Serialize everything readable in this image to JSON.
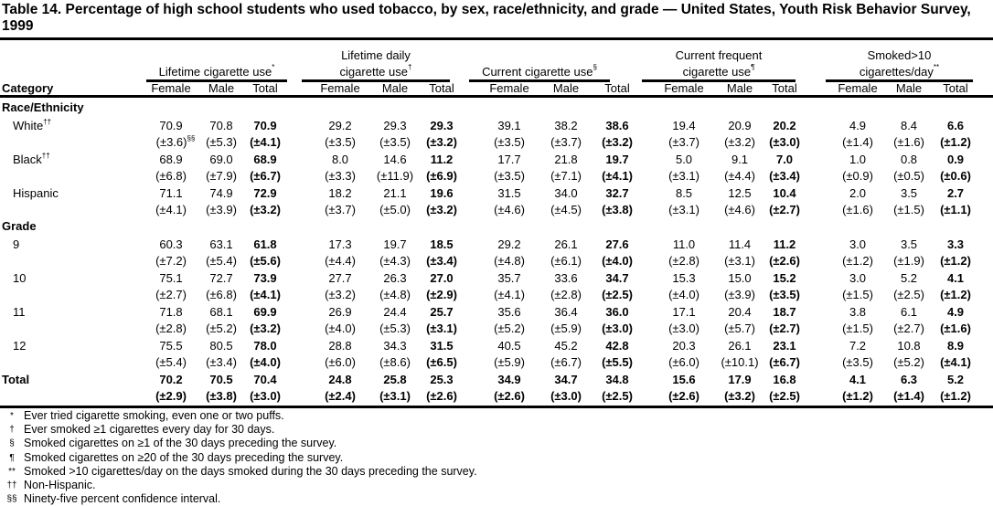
{
  "title": "Table 14. Percentage of high school students who used tobacco, by sex, race/ethnicity, and grade — United States, Youth Risk Behavior Survey, 1999",
  "category_header": "Category",
  "subheaders": [
    "Female",
    "Male",
    "Total"
  ],
  "groups": [
    {
      "label_lines": [
        "",
        "Lifetime cigarette use"
      ],
      "mark": "*"
    },
    {
      "label_lines": [
        "Lifetime daily",
        "cigarette use"
      ],
      "mark": "†"
    },
    {
      "label_lines": [
        "",
        "Current cigarette use"
      ],
      "mark": "§"
    },
    {
      "label_lines": [
        "Current frequent",
        "cigarette use"
      ],
      "mark": "¶"
    },
    {
      "label_lines": [
        "Smoked>10",
        "cigarettes/day"
      ],
      "mark": "**"
    }
  ],
  "rows": [
    {
      "type": "section",
      "label": "Race/Ethnicity"
    },
    {
      "type": "data",
      "label": "White",
      "mark": "††",
      "first_ci_mark": "§§",
      "values": [
        "70.9",
        "70.8",
        "70.9",
        "29.2",
        "29.3",
        "29.3",
        "39.1",
        "38.2",
        "38.6",
        "19.4",
        "20.9",
        "20.2",
        "4.9",
        "8.4",
        "6.6"
      ],
      "ci": [
        "(±3.6)",
        "(±5.3)",
        "(±4.1)",
        "(±3.5)",
        "(±3.5)",
        "(±3.2)",
        "(±3.5)",
        "(±3.7)",
        "(±3.2)",
        "(±3.7)",
        "(±3.2)",
        "(±3.0)",
        "(±1.4)",
        "(±1.6)",
        "(±1.2)"
      ]
    },
    {
      "type": "data",
      "label": "Black",
      "mark": "††",
      "values": [
        "68.9",
        "69.0",
        "68.9",
        "8.0",
        "14.6",
        "11.2",
        "17.7",
        "21.8",
        "19.7",
        "5.0",
        "9.1",
        "7.0",
        "1.0",
        "0.8",
        "0.9"
      ],
      "ci": [
        "(±6.8)",
        "(±7.9)",
        "(±6.7)",
        "(±3.3)",
        "(±11.9)",
        "(±6.9)",
        "(±3.5)",
        "(±7.1)",
        "(±4.1)",
        "(±3.1)",
        "(±4.4)",
        "(±3.4)",
        "(±0.9)",
        "(±0.5)",
        "(±0.6)"
      ]
    },
    {
      "type": "data",
      "label": "Hispanic",
      "values": [
        "71.1",
        "74.9",
        "72.9",
        "18.2",
        "21.1",
        "19.6",
        "31.5",
        "34.0",
        "32.7",
        "8.5",
        "12.5",
        "10.4",
        "2.0",
        "3.5",
        "2.7"
      ],
      "ci": [
        "(±4.1)",
        "(±3.9)",
        "(±3.2)",
        "(±3.7)",
        "(±5.0)",
        "(±3.2)",
        "(±4.6)",
        "(±4.5)",
        "(±3.8)",
        "(±3.1)",
        "(±4.6)",
        "(±2.7)",
        "(±1.6)",
        "(±1.5)",
        "(±1.1)"
      ]
    },
    {
      "type": "section",
      "label": "Grade"
    },
    {
      "type": "data",
      "label": "9",
      "values": [
        "60.3",
        "63.1",
        "61.8",
        "17.3",
        "19.7",
        "18.5",
        "29.2",
        "26.1",
        "27.6",
        "11.0",
        "11.4",
        "11.2",
        "3.0",
        "3.5",
        "3.3"
      ],
      "ci": [
        "(±7.2)",
        "(±5.4)",
        "(±5.6)",
        "(±4.4)",
        "(±4.3)",
        "(±3.4)",
        "(±4.8)",
        "(±6.1)",
        "(±4.0)",
        "(±2.8)",
        "(±3.1)",
        "(±2.6)",
        "(±1.2)",
        "(±1.9)",
        "(±1.2)"
      ]
    },
    {
      "type": "data",
      "label": "10",
      "values": [
        "75.1",
        "72.7",
        "73.9",
        "27.7",
        "26.3",
        "27.0",
        "35.7",
        "33.6",
        "34.7",
        "15.3",
        "15.0",
        "15.2",
        "3.0",
        "5.2",
        "4.1"
      ],
      "ci": [
        "(±2.7)",
        "(±6.8)",
        "(±4.1)",
        "(±3.2)",
        "(±4.8)",
        "(±2.9)",
        "(±4.1)",
        "(±2.8)",
        "(±2.5)",
        "(±4.0)",
        "(±3.9)",
        "(±3.5)",
        "(±1.5)",
        "(±2.5)",
        "(±1.2)"
      ]
    },
    {
      "type": "data",
      "label": "11",
      "values": [
        "71.8",
        "68.1",
        "69.9",
        "26.9",
        "24.4",
        "25.7",
        "35.6",
        "36.4",
        "36.0",
        "17.1",
        "20.4",
        "18.7",
        "3.8",
        "6.1",
        "4.9"
      ],
      "ci": [
        "(±2.8)",
        "(±5.2)",
        "(±3.2)",
        "(±4.0)",
        "(±5.3)",
        "(±3.1)",
        "(±5.2)",
        "(±5.9)",
        "(±3.0)",
        "(±3.0)",
        "(±5.7)",
        "(±2.7)",
        "(±1.5)",
        "(±2.7)",
        "(±1.6)"
      ]
    },
    {
      "type": "data",
      "label": "12",
      "values": [
        "75.5",
        "80.5",
        "78.0",
        "28.8",
        "34.3",
        "31.5",
        "40.5",
        "45.2",
        "42.8",
        "20.3",
        "26.1",
        "23.1",
        "7.2",
        "10.8",
        "8.9"
      ],
      "ci": [
        "(±5.4)",
        "(±3.4)",
        "(±4.0)",
        "(±6.0)",
        "(±8.6)",
        "(±6.5)",
        "(±5.9)",
        "(±6.7)",
        "(±5.5)",
        "(±6.0)",
        "(±10.1)",
        "(±6.7)",
        "(±3.5)",
        "(±5.2)",
        "(±4.1)"
      ]
    },
    {
      "type": "total",
      "label": "Total",
      "values": [
        "70.2",
        "70.5",
        "70.4",
        "24.8",
        "25.8",
        "25.3",
        "34.9",
        "34.7",
        "34.8",
        "15.6",
        "17.9",
        "16.8",
        "4.1",
        "6.3",
        "5.2"
      ],
      "ci": [
        "(±2.9)",
        "(±3.8)",
        "(±3.0)",
        "(±2.4)",
        "(±3.1)",
        "(±2.6)",
        "(±2.6)",
        "(±3.0)",
        "(±2.5)",
        "(±2.6)",
        "(±3.2)",
        "(±2.5)",
        "(±1.2)",
        "(±1.4)",
        "(±1.2)"
      ]
    }
  ],
  "footnotes": [
    {
      "mark": "*",
      "text": "Ever tried cigarette smoking, even one or two puffs."
    },
    {
      "mark": "†",
      "text": "Ever smoked ≥1 cigarettes every day for 30 days."
    },
    {
      "mark": "§",
      "text": "Smoked cigarettes on ≥1 of the 30 days preceding the survey."
    },
    {
      "mark": "¶",
      "text": "Smoked cigarettes on ≥20 of the 30 days preceding the survey."
    },
    {
      "mark": "**",
      "text": "Smoked >10 cigarettes/day on the days smoked during the 30 days preceding the survey."
    },
    {
      "mark": "††",
      "text": "Non-Hispanic."
    },
    {
      "mark": "§§",
      "text": "Ninety-five percent confidence interval."
    }
  ]
}
